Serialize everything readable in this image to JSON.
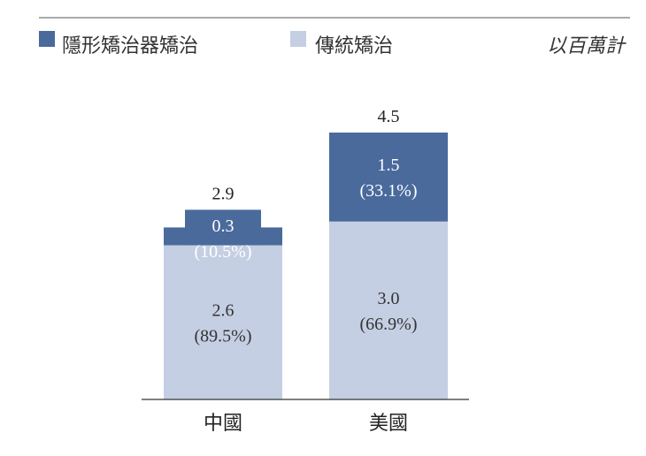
{
  "chart_data": {
    "type": "bar",
    "stacked": true,
    "unit_label": "以百萬計",
    "categories": [
      "中國",
      "美國"
    ],
    "series": [
      {
        "name": "傳統矯治",
        "color": "#c5cfe3",
        "values": [
          2.6,
          3.0
        ],
        "labels": [
          [
            "2.6",
            "(89.5%)"
          ],
          [
            "3.0",
            "(66.9%)"
          ]
        ]
      },
      {
        "name": "隱形矯治器矯治",
        "color": "#4a6a9c",
        "values": [
          0.3,
          1.5
        ],
        "labels": [
          [
            "0.3",
            "(10.5%)"
          ],
          [
            "1.5",
            "(33.1%)"
          ]
        ]
      }
    ],
    "totals": [
      "2.9",
      "4.5"
    ],
    "ylim": [
      0,
      4.5
    ],
    "legend_position": "top-left",
    "grid": false
  }
}
